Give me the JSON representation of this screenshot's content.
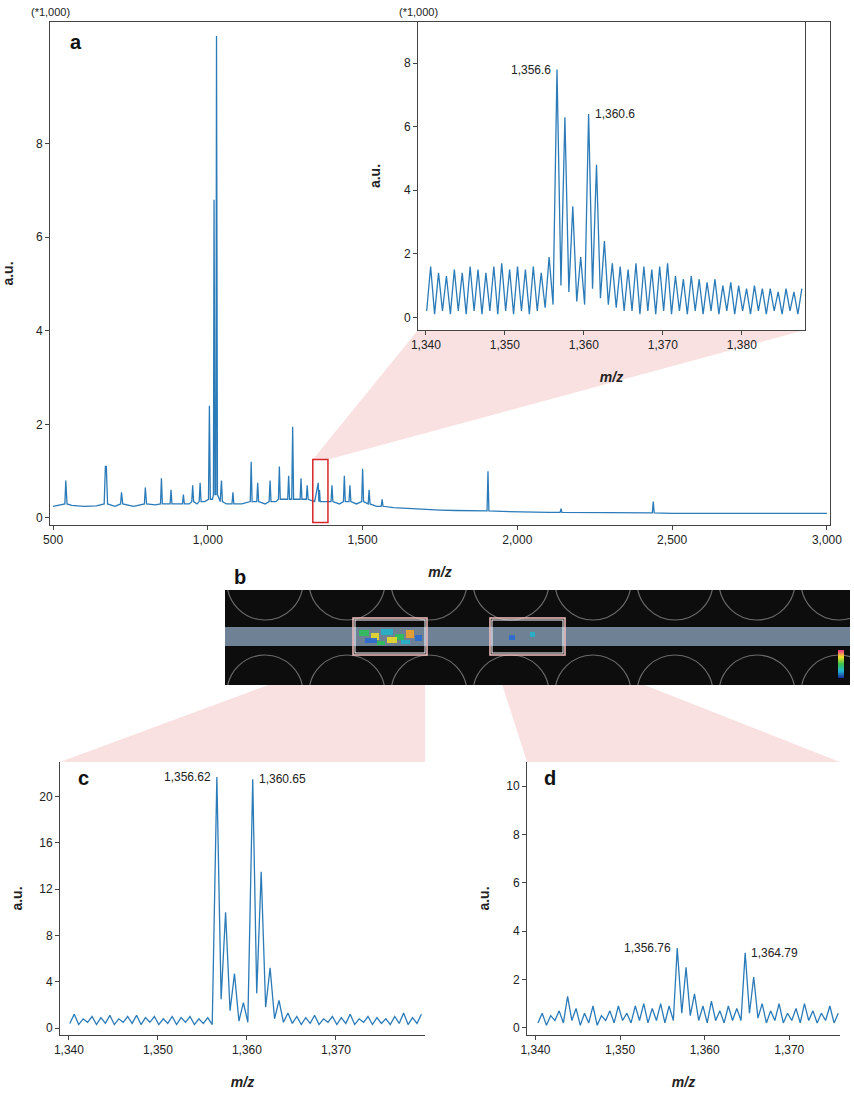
{
  "chart_data": [
    {
      "panel": "a",
      "type": "line",
      "x_label": "m/z",
      "y_label": "a.u.",
      "y_scale_text": "(*1,000)",
      "color": "#2b7bb9",
      "xlim": [
        490,
        3010
      ],
      "ylim": [
        -0.15,
        10.6
      ],
      "xticks": [
        500,
        {
          "value": 1000,
          "label": "1,000"
        },
        {
          "value": 1500,
          "label": "1,500"
        },
        {
          "value": 2000,
          "label": "2,000"
        },
        {
          "value": 2500,
          "label": "2,500"
        },
        {
          "value": 3000,
          "label": "3,000"
        }
      ],
      "yticks": [
        0,
        2,
        4,
        6,
        8
      ],
      "x": [
        500,
        530,
        538,
        541,
        545,
        560,
        600,
        640,
        665,
        669,
        672,
        676,
        700,
        718,
        721,
        725,
        760,
        795,
        798,
        802,
        830,
        847,
        850,
        853,
        870,
        878,
        881,
        884,
        900,
        918,
        921,
        924,
        940,
        948,
        951,
        954,
        965,
        972,
        975,
        978,
        990,
        1002,
        1005,
        1008,
        1015,
        1018,
        1020,
        1023,
        1026,
        1028,
        1031,
        1040,
        1044,
        1047,
        1060,
        1078,
        1081,
        1084,
        1110,
        1137,
        1140,
        1143,
        1150,
        1158,
        1161,
        1164,
        1185,
        1198,
        1201,
        1204,
        1220,
        1228,
        1231,
        1234,
        1250,
        1258,
        1261,
        1264,
        1271,
        1274,
        1277,
        1290,
        1298,
        1301,
        1304,
        1318,
        1321,
        1324,
        1345,
        1356.6,
        1358.6,
        1360.6,
        1363,
        1380,
        1398,
        1401,
        1404,
        1425,
        1438,
        1441,
        1444,
        1456,
        1459,
        1462,
        1480,
        1497,
        1500,
        1503,
        1518,
        1521,
        1524,
        1545,
        1560,
        1563,
        1566,
        1600,
        1650,
        1700,
        1750,
        1800,
        1850,
        1890,
        1902,
        1905,
        1908,
        1950,
        2000,
        2100,
        2138,
        2141,
        2144,
        2200,
        2300,
        2400,
        2436,
        2439,
        2442,
        2500,
        2600,
        2700,
        2800,
        2900,
        3000
      ],
      "values": [
        0.25,
        0.28,
        0.3,
        0.8,
        0.3,
        0.27,
        0.25,
        0.26,
        0.3,
        1.1,
        1.1,
        0.3,
        0.25,
        0.3,
        0.55,
        0.3,
        0.25,
        0.3,
        0.65,
        0.3,
        0.28,
        0.3,
        0.85,
        0.3,
        0.3,
        0.3,
        0.6,
        0.3,
        0.3,
        0.3,
        0.5,
        0.3,
        0.3,
        0.35,
        0.7,
        0.35,
        0.3,
        0.35,
        0.75,
        0.35,
        0.35,
        0.4,
        2.4,
        0.4,
        0.4,
        0.5,
        6.8,
        0.5,
        0.5,
        10.3,
        0.5,
        0.35,
        0.8,
        0.35,
        0.3,
        0.3,
        0.55,
        0.3,
        0.3,
        0.35,
        1.2,
        0.35,
        0.35,
        0.35,
        0.75,
        0.35,
        0.3,
        0.35,
        0.8,
        0.35,
        0.35,
        0.4,
        1.1,
        0.4,
        0.4,
        0.4,
        0.9,
        0.4,
        0.4,
        1.95,
        0.4,
        0.4,
        0.4,
        0.85,
        0.4,
        0.4,
        0.7,
        0.4,
        0.35,
        0.75,
        0.35,
        0.6,
        0.35,
        0.35,
        0.35,
        0.7,
        0.35,
        0.3,
        0.35,
        0.9,
        0.35,
        0.35,
        0.7,
        0.35,
        0.3,
        0.35,
        1.05,
        0.35,
        0.3,
        0.6,
        0.3,
        0.25,
        0.25,
        0.4,
        0.25,
        0.22,
        0.2,
        0.18,
        0.17,
        0.16,
        0.15,
        0.15,
        0.15,
        1.0,
        0.15,
        0.14,
        0.13,
        0.12,
        0.12,
        0.2,
        0.12,
        0.12,
        0.11,
        0.11,
        0.11,
        0.35,
        0.11,
        0.1,
        0.1,
        0.1,
        0.1,
        0.1,
        0.1
      ],
      "inset": {
        "type": "line",
        "x_label": "m/z",
        "y_label": "a.u.",
        "y_scale_text": "(*1,000)",
        "color": "#2b7bb9",
        "xlim": [
          1339,
          1388
        ],
        "ylim": [
          -0.4,
          9.3
        ],
        "xticks": [
          {
            "value": 1340,
            "label": "1,340"
          },
          {
            "value": 1350,
            "label": "1,350"
          },
          {
            "value": 1360,
            "label": "1,360"
          },
          {
            "value": 1370,
            "label": "1,370"
          },
          {
            "value": 1380,
            "label": "1,380"
          }
        ],
        "yticks": [
          0,
          2,
          4,
          6,
          8
        ],
        "x": [
          1340.1,
          1340.6,
          1341.1,
          1341.6,
          1342.1,
          1342.6,
          1343.1,
          1343.6,
          1344.1,
          1344.6,
          1345.1,
          1345.6,
          1346.1,
          1346.6,
          1347.1,
          1347.6,
          1348.1,
          1348.6,
          1349.1,
          1349.6,
          1350.1,
          1350.6,
          1351.1,
          1351.6,
          1352.1,
          1352.6,
          1353.1,
          1353.6,
          1354.1,
          1354.6,
          1355.1,
          1355.6,
          1356.1,
          1356.6,
          1357.1,
          1357.6,
          1358.1,
          1358.6,
          1359.1,
          1359.6,
          1360.1,
          1360.6,
          1361.1,
          1361.6,
          1362.1,
          1362.6,
          1363.1,
          1363.6,
          1364.1,
          1364.6,
          1365.1,
          1365.6,
          1366.1,
          1366.6,
          1367.1,
          1367.6,
          1368.1,
          1368.6,
          1369.1,
          1369.6,
          1370.1,
          1370.6,
          1371.1,
          1371.6,
          1372.1,
          1372.6,
          1373.1,
          1373.6,
          1374.1,
          1374.6,
          1375.1,
          1375.6,
          1376.1,
          1376.6,
          1377.1,
          1377.6,
          1378.1,
          1378.6,
          1379.1,
          1379.6,
          1380.1,
          1380.6,
          1381.1,
          1381.6,
          1382.1,
          1382.6,
          1383.1,
          1383.6,
          1384.1,
          1384.6,
          1385.1,
          1385.6,
          1386.1,
          1386.6,
          1387.1,
          1387.6
        ],
        "values": [
          0.2,
          1.6,
          0.1,
          1.4,
          0.2,
          1.3,
          0.1,
          1.5,
          0.2,
          1.4,
          0.1,
          1.6,
          0.2,
          1.5,
          0.1,
          1.4,
          0.2,
          1.6,
          0.1,
          1.7,
          0.2,
          1.5,
          0.1,
          1.6,
          0.2,
          1.5,
          0.1,
          1.6,
          0.2,
          1.4,
          0.3,
          1.9,
          0.4,
          7.8,
          1.0,
          6.3,
          0.8,
          3.5,
          0.5,
          1.9,
          0.4,
          6.4,
          0.9,
          4.8,
          0.6,
          2.4,
          0.4,
          1.7,
          0.3,
          1.6,
          0.2,
          1.5,
          0.2,
          1.7,
          0.1,
          1.6,
          0.2,
          1.5,
          0.1,
          1.6,
          0.2,
          1.7,
          0.1,
          1.3,
          0.2,
          1.2,
          0.1,
          1.3,
          0.2,
          1.2,
          0.1,
          1.1,
          0.2,
          1.2,
          0.1,
          1.0,
          0.2,
          1.1,
          0.1,
          1.0,
          0.2,
          0.9,
          0.1,
          1.0,
          0.2,
          0.9,
          0.1,
          0.9,
          0.2,
          0.8,
          0.1,
          0.9,
          0.2,
          0.8,
          0.1,
          0.9
        ],
        "annotations": [
          {
            "text": "1,356.6",
            "x": 1356.6,
            "y": 7.8
          },
          {
            "text": "1,360.6",
            "x": 1360.6,
            "y": 6.4
          }
        ]
      }
    },
    {
      "panel": "b",
      "type": "image"
    },
    {
      "panel": "c",
      "type": "line",
      "x_label": "m/z",
      "y_label": "a.u.",
      "color": "#2b7bb9",
      "xlim": [
        1339,
        1380
      ],
      "ylim": [
        -0.6,
        23
      ],
      "xticks": [
        {
          "value": 1340,
          "label": "1,340"
        },
        {
          "value": 1350,
          "label": "1,350"
        },
        {
          "value": 1360,
          "label": "1,360"
        },
        {
          "value": 1370,
          "label": "1,370"
        }
      ],
      "yticks": [
        0,
        4,
        8,
        12,
        16,
        20
      ],
      "x": [
        1340.1,
        1340.6,
        1341.1,
        1341.6,
        1342.1,
        1342.6,
        1343.1,
        1343.6,
        1344.1,
        1344.6,
        1345.1,
        1345.6,
        1346.1,
        1346.6,
        1347.1,
        1347.6,
        1348.1,
        1348.6,
        1349.1,
        1349.6,
        1350.1,
        1350.6,
        1351.1,
        1351.6,
        1352.1,
        1352.6,
        1353.1,
        1353.6,
        1354.1,
        1354.6,
        1355.1,
        1355.6,
        1356.1,
        1356.62,
        1357.1,
        1357.6,
        1358.1,
        1358.6,
        1359.1,
        1359.6,
        1360.1,
        1360.65,
        1361.1,
        1361.6,
        1362.1,
        1362.6,
        1363.1,
        1363.6,
        1364.1,
        1364.6,
        1365.1,
        1365.6,
        1366.1,
        1366.6,
        1367.1,
        1367.6,
        1368.1,
        1368.6,
        1369.1,
        1369.6,
        1370.1,
        1370.6,
        1371.1,
        1371.6,
        1372.1,
        1372.6,
        1373.1,
        1373.6,
        1374.1,
        1374.6,
        1375.1,
        1375.6,
        1376.1,
        1376.6,
        1377.1,
        1377.6,
        1378.1,
        1378.6,
        1379.1,
        1379.6
      ],
      "values": [
        0.4,
        1.2,
        0.3,
        0.8,
        0.5,
        1.0,
        0.3,
        0.9,
        0.4,
        1.1,
        0.3,
        0.8,
        0.5,
        1.0,
        0.4,
        1.1,
        0.3,
        0.9,
        0.5,
        1.0,
        0.3,
        0.8,
        0.4,
        1.0,
        0.3,
        0.9,
        0.5,
        1.0,
        0.3,
        0.8,
        0.4,
        0.9,
        0.3,
        21.7,
        2.5,
        10.0,
        1.5,
        4.7,
        0.6,
        2.2,
        0.5,
        21.5,
        3.0,
        13.5,
        1.8,
        5.2,
        0.8,
        2.4,
        0.5,
        1.3,
        0.4,
        1.0,
        0.3,
        0.9,
        0.4,
        1.1,
        0.3,
        0.8,
        0.5,
        1.0,
        0.3,
        0.9,
        0.4,
        1.2,
        0.3,
        0.8,
        0.5,
        1.0,
        0.3,
        0.9,
        0.4,
        0.8,
        0.3,
        1.0,
        0.4,
        1.3,
        0.3,
        0.9,
        0.4,
        1.2
      ],
      "annotations": [
        {
          "text": "1,356.62",
          "x": 1356.62,
          "y": 21.7
        },
        {
          "text": "1,360.65",
          "x": 1360.65,
          "y": 21.5
        }
      ]
    },
    {
      "panel": "d",
      "type": "line",
      "x_label": "m/z",
      "y_label": "a.u.",
      "color": "#2b7bb9",
      "xlim": [
        1339,
        1376
      ],
      "ylim": [
        -0.3,
        11
      ],
      "xticks": [
        {
          "value": 1340,
          "label": "1,340"
        },
        {
          "value": 1350,
          "label": "1,350"
        },
        {
          "value": 1360,
          "label": "1,360"
        },
        {
          "value": 1370,
          "label": "1,370"
        }
      ],
      "yticks": [
        0,
        2,
        4,
        6,
        8,
        10
      ],
      "x": [
        1340.3,
        1340.8,
        1341.3,
        1341.8,
        1342.3,
        1342.8,
        1343.3,
        1343.8,
        1344.3,
        1344.8,
        1345.3,
        1345.8,
        1346.3,
        1346.8,
        1347.3,
        1347.8,
        1348.3,
        1348.8,
        1349.3,
        1349.8,
        1350.3,
        1350.8,
        1351.3,
        1351.8,
        1352.3,
        1352.8,
        1353.3,
        1353.8,
        1354.3,
        1354.8,
        1355.3,
        1355.8,
        1356.3,
        1356.76,
        1357.3,
        1357.8,
        1358.3,
        1358.8,
        1359.3,
        1359.8,
        1360.3,
        1360.8,
        1361.3,
        1361.8,
        1362.3,
        1362.8,
        1363.3,
        1363.8,
        1364.3,
        1364.79,
        1365.3,
        1365.8,
        1366.3,
        1366.8,
        1367.3,
        1367.8,
        1368.3,
        1368.8,
        1369.3,
        1369.8,
        1370.3,
        1370.8,
        1371.3,
        1371.8,
        1372.3,
        1372.8,
        1373.3,
        1373.8,
        1374.3,
        1374.8,
        1375.3,
        1375.8
      ],
      "values": [
        0.2,
        0.6,
        0.1,
        0.5,
        0.3,
        0.7,
        0.2,
        1.3,
        0.3,
        0.8,
        0.1,
        0.6,
        0.2,
        0.9,
        0.1,
        0.5,
        0.3,
        0.7,
        0.2,
        0.9,
        0.3,
        0.6,
        0.2,
        0.9,
        0.3,
        1.0,
        0.2,
        0.8,
        0.3,
        1.0,
        0.2,
        0.9,
        0.3,
        3.3,
        0.6,
        2.5,
        0.5,
        1.4,
        0.3,
        0.9,
        0.2,
        1.1,
        0.3,
        0.7,
        0.2,
        0.9,
        0.3,
        0.8,
        0.3,
        3.1,
        0.6,
        2.1,
        0.4,
        1.0,
        0.2,
        0.7,
        0.3,
        1.0,
        0.2,
        0.6,
        0.3,
        0.8,
        0.2,
        1.0,
        0.3,
        0.7,
        0.2,
        0.6,
        0.3,
        0.9,
        0.2,
        0.6
      ],
      "annotations": [
        {
          "text": "1,356.76",
          "x": 1356.76,
          "y": 3.3
        },
        {
          "text": "1,364.79",
          "x": 1364.79,
          "y": 3.1
        }
      ]
    }
  ]
}
